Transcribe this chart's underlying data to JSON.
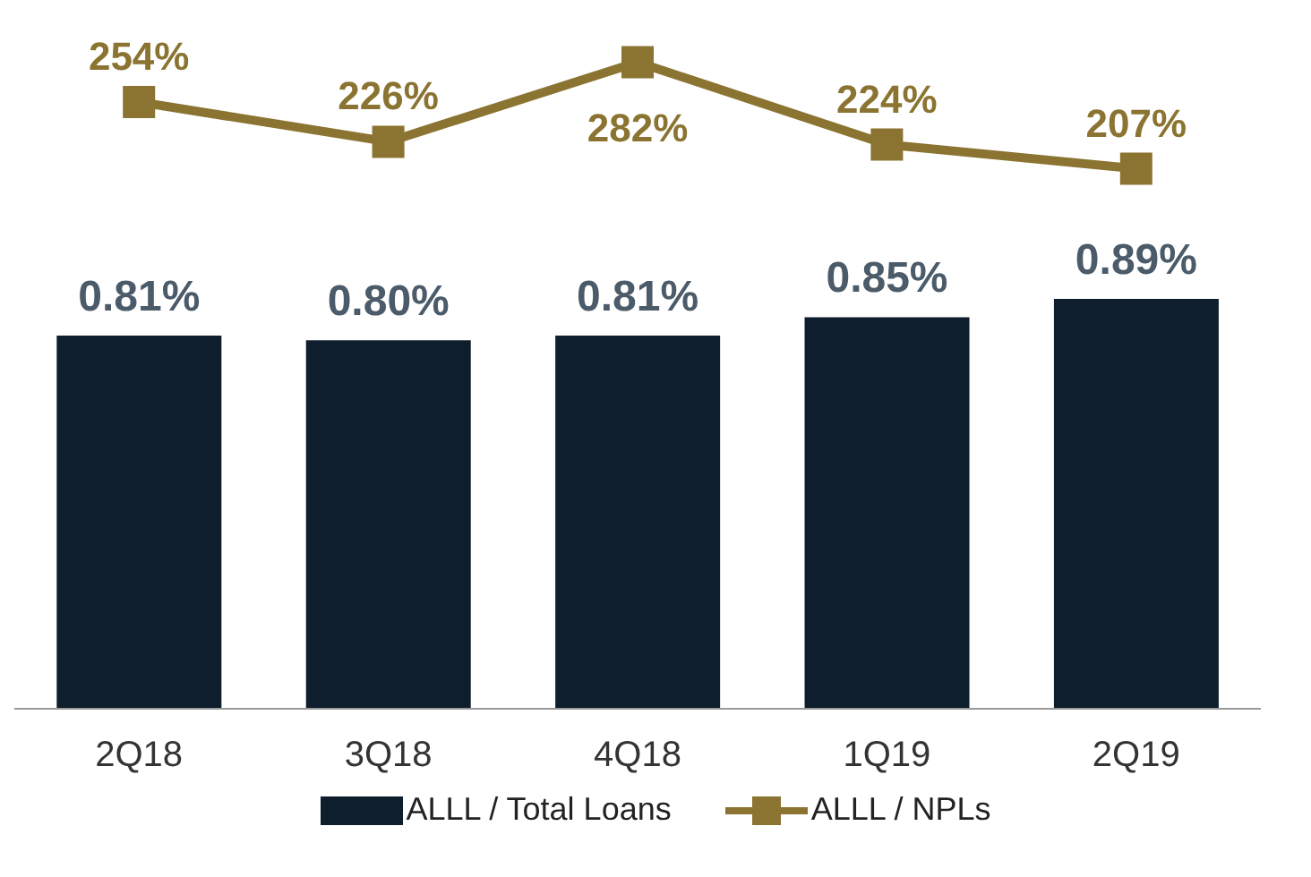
{
  "chart_data": [
    {
      "type": "line",
      "categories": [
        null,
        null,
        null,
        null,
        null
      ],
      "legend": "bottom",
      "marker": "square",
      "series": [
        {
          "name": "ALLL / NPLs",
          "color": "#8b7431",
          "values": [
            254,
            226,
            282,
            224,
            207
          ],
          "value_labels": [
            "254%",
            "226%",
            "282%",
            "224%",
            "207%"
          ]
        }
      ]
    },
    {
      "type": "bar",
      "categories": [
        "2Q18",
        "3Q18",
        "4Q18",
        "1Q19",
        "2Q19"
      ],
      "legend": "bottom",
      "grid": false,
      "series": [
        {
          "name": "ALLL / Total Loans",
          "color": "#0e1e2c",
          "values": [
            0.81,
            0.8,
            0.81,
            0.85,
            0.89
          ],
          "value_labels": [
            "0.81%",
            "0.80%",
            "0.81%",
            "0.85%",
            "0.89%"
          ]
        }
      ]
    }
  ]
}
